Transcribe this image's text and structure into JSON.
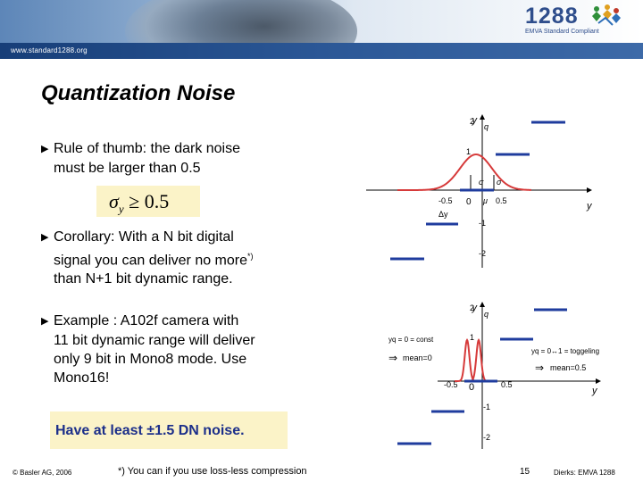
{
  "header": {
    "site_url": "www.standard1288.org",
    "logo_number": "1288",
    "logo_subtitle": "EMVA Standard Compliant"
  },
  "slide": {
    "title": "Quantization Noise",
    "bullets": [
      {
        "lines": [
          "Rule of thumb: the dark noise",
          "must be larger than 0.5"
        ]
      },
      {
        "lines": [
          "Corollary: With a N bit digital",
          "signal you can deliver no more",
          "than N+1 bit dynamic range."
        ],
        "footnote_mark": "*)"
      },
      {
        "lines": [
          "Example : A102f camera with",
          "11 bit dynamic range will deliver",
          "only 9 bit in Mono8 mode. Use",
          "Mono16!"
        ]
      }
    ],
    "formula": {
      "symbol": "σ",
      "subscript": "y",
      "relation": "≥ 0.5"
    },
    "highlight": "Have at least ±1.5 DN noise."
  },
  "diagram_top": {
    "y_axis_label": "y",
    "y_axis_sub": "q",
    "x_axis_label": "y",
    "y_ticks": [
      "2",
      "1",
      "-1",
      "-2"
    ],
    "x_ticks": [
      "-0.5",
      "0",
      "0.5"
    ],
    "mu": "μ",
    "sigma": "σ",
    "delta_y": "Δy",
    "curve_color": "#d63a3a",
    "step_color": "#1f3c9e"
  },
  "diagram_bottom": {
    "y_axis_label": "y",
    "y_axis_sub": "q",
    "x_axis_label": "y",
    "y_ticks": [
      "2",
      "1",
      "-1",
      "-2"
    ],
    "x_ticks": [
      "-0.5",
      "0",
      "0.5"
    ],
    "left_note_1": "yq = 0 = const",
    "left_note_2": "mean=0",
    "right_note_1": "yq = 0↔1 = toggeling",
    "right_note_2": "mean=0.5"
  },
  "footer": {
    "copyright": "© Basler AG, 2006",
    "footnote": "*) You can if you use loss-less compression",
    "page": "15",
    "author": "Dierks: EMVA 1288"
  }
}
